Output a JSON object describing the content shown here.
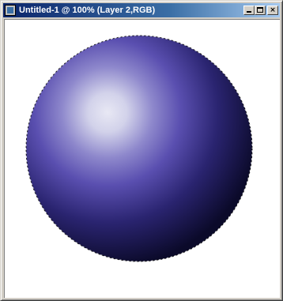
{
  "window": {
    "title": "Untitled-1 @ 100% (Layer 2,RGB)",
    "app_icon": "photoshop-document-icon",
    "buttons": {
      "minimize": {
        "icon": "minimize-icon"
      },
      "maximize": {
        "icon": "maximize-icon"
      },
      "close": {
        "icon": "close-icon",
        "glyph": "×"
      }
    }
  },
  "canvas": {
    "background": "#ffffff",
    "layer": {
      "shape": "sphere",
      "selection": "marching-ants-circle",
      "gradient": {
        "type": "radial",
        "highlight": "#e8e8f4",
        "mid": "#5a4fb0",
        "base": "#2a2470",
        "shadow": "#0b0a2a"
      }
    }
  }
}
